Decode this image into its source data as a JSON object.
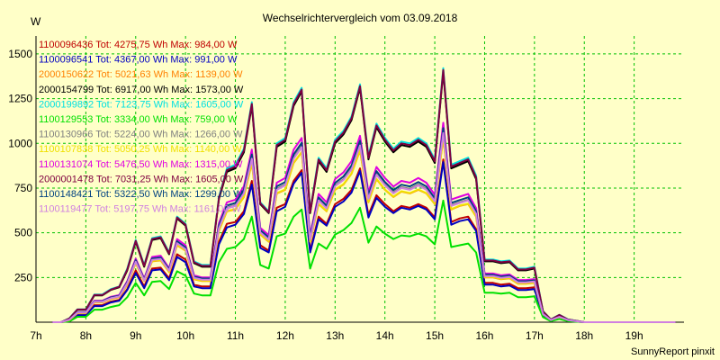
{
  "chart_data": {
    "type": "line",
    "title": "Wechselrichtervergleich vom 03.09.2018",
    "ylabel": "W",
    "footer": "SunnyReport pinxit",
    "ylim": [
      0,
      1600
    ],
    "xlim": [
      7,
      20
    ],
    "grid": true,
    "x_ticks": [
      7,
      8,
      9,
      10,
      11,
      12,
      13,
      14,
      15,
      16,
      17,
      18,
      19
    ],
    "x_tick_labels": [
      "7h",
      "8h",
      "9h",
      "10h",
      "11h",
      "12h",
      "13h",
      "14h",
      "15h",
      "16h",
      "17h",
      "18h",
      "19h"
    ],
    "y_ticks": [
      250,
      500,
      750,
      1000,
      1250,
      1500
    ],
    "y_tick_labels": [
      "250",
      "500",
      "750",
      "1000",
      "1250",
      "1500"
    ],
    "x": [
      7.33,
      7.5,
      7.67,
      7.83,
      8.0,
      8.17,
      8.33,
      8.5,
      8.67,
      8.83,
      9.0,
      9.17,
      9.33,
      9.5,
      9.67,
      9.83,
      10.0,
      10.17,
      10.33,
      10.5,
      10.67,
      10.83,
      11.0,
      11.17,
      11.33,
      11.5,
      11.67,
      11.83,
      12.0,
      12.17,
      12.33,
      12.5,
      12.67,
      12.83,
      13.0,
      13.17,
      13.33,
      13.5,
      13.67,
      13.83,
      14.0,
      14.17,
      14.33,
      14.5,
      14.67,
      14.83,
      15.0,
      15.17,
      15.33,
      15.5,
      15.67,
      15.83,
      16.0,
      16.17,
      16.33,
      16.5,
      16.67,
      16.83,
      17.0,
      17.17,
      17.33,
      17.5,
      17.67,
      17.83,
      18.0,
      18.17,
      18.33,
      18.5,
      18.67,
      18.83,
      19.0,
      19.17,
      19.33,
      19.5,
      19.67,
      19.83
    ],
    "series": [
      {
        "name": "1100096436 Tot: 4275,75 Wh Max: 984,00 W",
        "color": "#c00000",
        "values": [
          0,
          0,
          8,
          45,
          45,
          95,
          95,
          115,
          125,
          185,
          290,
          200,
          300,
          305,
          245,
          380,
          350,
          210,
          200,
          200,
          450,
          550,
          560,
          620,
          790,
          430,
          400,
          640,
          660,
          790,
          850,
          400,
          590,
          550,
          660,
          690,
          740,
          860,
          600,
          710,
          660,
          620,
          650,
          640,
          660,
          640,
          585,
          910,
          560,
          580,
          590,
          520,
          220,
          220,
          210,
          215,
          190,
          190,
          195,
          40,
          10,
          25,
          10,
          5,
          0,
          0,
          0,
          0,
          0,
          0,
          0,
          0,
          0,
          0,
          0,
          0
        ]
      },
      {
        "name": "1100096541 Tot: 4367,00 Wh Max: 991,00 W",
        "color": "#0000c0",
        "values": [
          0,
          0,
          10,
          40,
          40,
          90,
          90,
          110,
          120,
          180,
          275,
          190,
          290,
          295,
          235,
          365,
          335,
          200,
          190,
          190,
          435,
          530,
          545,
          605,
          770,
          415,
          390,
          620,
          645,
          775,
          835,
          390,
          575,
          540,
          645,
          675,
          725,
          845,
          585,
          695,
          645,
          610,
          640,
          630,
          650,
          630,
          575,
          895,
          545,
          565,
          575,
          510,
          210,
          210,
          200,
          205,
          180,
          180,
          185,
          35,
          8,
          22,
          8,
          4,
          0,
          0,
          0,
          0,
          0,
          0,
          0,
          0,
          0,
          0,
          0,
          0
        ]
      },
      {
        "name": "2000150622 Tot: 5021,63 Wh Max: 1139,00 W",
        "color": "#ff8000",
        "values": [
          0,
          0,
          12,
          50,
          50,
          110,
          110,
          130,
          140,
          210,
          330,
          230,
          340,
          345,
          280,
          430,
          400,
          240,
          230,
          230,
          510,
          620,
          630,
          700,
          890,
          490,
          450,
          720,
          740,
          890,
          950,
          450,
          660,
          620,
          740,
          770,
          830,
          960,
          670,
          800,
          740,
          700,
          730,
          720,
          740,
          720,
          660,
          1030,
          630,
          650,
          660,
          590,
          250,
          250,
          240,
          245,
          215,
          215,
          220,
          45,
          12,
          28,
          12,
          6,
          0,
          0,
          0,
          0,
          0,
          0,
          0,
          0,
          0,
          0,
          0,
          0
        ]
      },
      {
        "name": "2000154799 Tot: 6917,00 Wh Max: 1573,00 W",
        "color": "#000000",
        "values": [
          0,
          0,
          20,
          70,
          70,
          150,
          150,
          180,
          195,
          290,
          450,
          310,
          460,
          470,
          380,
          580,
          540,
          330,
          310,
          310,
          690,
          840,
          860,
          950,
          1210,
          660,
          610,
          980,
          1010,
          1210,
          1290,
          610,
          900,
          840,
          1000,
          1050,
          1130,
          1310,
          910,
          1090,
          1010,
          950,
          990,
          980,
          1010,
          980,
          890,
          1400,
          860,
          880,
          900,
          800,
          340,
          340,
          330,
          335,
          290,
          290,
          300,
          60,
          15,
          40,
          15,
          8,
          0,
          0,
          0,
          0,
          0,
          0,
          0,
          0,
          0,
          0,
          0,
          0
        ]
      },
      {
        "name": "2000199892 Tot: 7123,75 Wh Max: 1605,00 W",
        "color": "#00e0e0",
        "values": [
          0,
          0,
          22,
          72,
          72,
          155,
          155,
          185,
          200,
          300,
          460,
          320,
          470,
          480,
          390,
          590,
          550,
          340,
          320,
          320,
          700,
          860,
          880,
          970,
          1230,
          670,
          620,
          1000,
          1030,
          1230,
          1310,
          620,
          920,
          860,
          1020,
          1070,
          1150,
          1330,
          930,
          1110,
          1030,
          970,
          1010,
          1000,
          1030,
          1000,
          910,
          1420,
          880,
          900,
          920,
          820,
          350,
          350,
          340,
          345,
          300,
          300,
          310,
          62,
          16,
          42,
          16,
          8,
          0,
          0,
          0,
          0,
          0,
          0,
          0,
          0,
          0,
          0,
          0,
          0
        ]
      },
      {
        "name": "1100129553 Tot: 3334,00 Wh Max: 759,00 W",
        "color": "#00e000",
        "values": [
          0,
          0,
          5,
          30,
          30,
          70,
          70,
          85,
          95,
          140,
          220,
          150,
          225,
          230,
          185,
          285,
          260,
          160,
          150,
          150,
          335,
          410,
          420,
          465,
          590,
          320,
          300,
          480,
          495,
          590,
          630,
          300,
          440,
          410,
          490,
          515,
          555,
          640,
          445,
          535,
          495,
          465,
          485,
          480,
          495,
          480,
          435,
          680,
          420,
          430,
          440,
          390,
          165,
          165,
          160,
          165,
          140,
          140,
          145,
          28,
          6,
          18,
          6,
          3,
          0,
          0,
          0,
          0,
          0,
          0,
          0,
          0,
          0,
          0,
          0,
          0
        ]
      },
      {
        "name": "1100130966 Tot: 5224,00 Wh Max: 1266,00 W",
        "color": "#808080",
        "values": [
          0,
          0,
          14,
          55,
          55,
          115,
          115,
          135,
          145,
          220,
          340,
          235,
          350,
          355,
          290,
          445,
          410,
          250,
          240,
          240,
          530,
          640,
          655,
          725,
          920,
          505,
          465,
          745,
          770,
          920,
          985,
          465,
          685,
          640,
          765,
          800,
          860,
          995,
          695,
          830,
          770,
          725,
          755,
          745,
          770,
          745,
          680,
          1065,
          655,
          670,
          685,
          610,
          260,
          260,
          250,
          255,
          225,
          225,
          230,
          46,
          12,
          30,
          12,
          6,
          0,
          0,
          0,
          0,
          0,
          0,
          0,
          0,
          0,
          0,
          0,
          0
        ]
      },
      {
        "name": "1100107838 Tot: 5050,25 Wh Max: 1140,00 W",
        "color": "#f0e000",
        "values": [
          0,
          0,
          12,
          52,
          52,
          112,
          112,
          132,
          142,
          212,
          332,
          232,
          342,
          347,
          282,
          432,
          402,
          242,
          232,
          232,
          512,
          622,
          632,
          702,
          892,
          492,
          452,
          722,
          742,
          892,
          952,
          452,
          662,
          622,
          742,
          772,
          832,
          962,
          672,
          802,
          742,
          702,
          732,
          722,
          742,
          722,
          662,
          1032,
          632,
          652,
          662,
          592,
          252,
          252,
          242,
          247,
          217,
          217,
          222,
          45,
          12,
          28,
          12,
          6,
          0,
          0,
          0,
          0,
          0,
          0,
          0,
          0,
          0,
          0,
          0,
          0
        ]
      },
      {
        "name": "1100131074 Tot: 5476,50 Wh Max: 1315,00 W",
        "color": "#e000e0",
        "values": [
          0,
          0,
          15,
          57,
          57,
          120,
          120,
          142,
          152,
          230,
          355,
          245,
          365,
          372,
          302,
          465,
          430,
          262,
          250,
          250,
          555,
          670,
          685,
          760,
          965,
          528,
          487,
          780,
          806,
          965,
          1030,
          487,
          717,
          670,
          800,
          838,
          900,
          1042,
          727,
          868,
          806,
          758,
          790,
          780,
          806,
          780,
          712,
          1115,
          686,
          702,
          717,
          638,
          272,
          272,
          262,
          267,
          236,
          236,
          241,
          48,
          13,
          31,
          13,
          6,
          0,
          0,
          0,
          0,
          0,
          0,
          0,
          0,
          0,
          0,
          0,
          0
        ]
      },
      {
        "name": "2000001478 Tot: 7031,25 Wh Max: 1605,00 W",
        "color": "#800040",
        "values": [
          0,
          0,
          21,
          71,
          71,
          152,
          152,
          182,
          198,
          295,
          455,
          315,
          465,
          475,
          385,
          585,
          545,
          335,
          315,
          315,
          695,
          850,
          870,
          960,
          1220,
          665,
          615,
          990,
          1020,
          1220,
          1300,
          615,
          910,
          850,
          1010,
          1060,
          1140,
          1320,
          920,
          1100,
          1020,
          960,
          1000,
          990,
          1020,
          990,
          900,
          1410,
          870,
          890,
          910,
          810,
          345,
          345,
          335,
          340,
          295,
          295,
          305,
          61,
          15,
          41,
          15,
          8,
          0,
          0,
          0,
          0,
          0,
          0,
          0,
          0,
          0,
          0,
          0,
          0
        ]
      },
      {
        "name": "1100148421 Tot: 5322,50 Wh Max: 1299,00 W",
        "color": "#004080",
        "values": [
          0,
          0,
          14,
          56,
          56,
          117,
          117,
          138,
          148,
          224,
          346,
          239,
          356,
          362,
          295,
          453,
          418,
          255,
          244,
          244,
          540,
          652,
          667,
          740,
          938,
          514,
          474,
          759,
          784,
          938,
          1003,
          474,
          698,
          652,
          779,
          815,
          876,
          1014,
          708,
          845,
          784,
          738,
          769,
          759,
          784,
          759,
          693,
          1085,
          667,
          683,
          698,
          621,
          265,
          265,
          255,
          260,
          229,
          229,
          234,
          47,
          12,
          30,
          12,
          6,
          0,
          0,
          0,
          0,
          0,
          0,
          0,
          0,
          0,
          0,
          0,
          0
        ]
      },
      {
        "name": "1100119477 Tot: 5197,75 Wh Max: 1161,00 W",
        "color": "#d080e0",
        "values": [
          0,
          0,
          14,
          54,
          54,
          114,
          114,
          134,
          144,
          218,
          338,
          234,
          348,
          353,
          288,
          442,
          408,
          248,
          238,
          238,
          526,
          636,
          650,
          720,
          914,
          502,
          462,
          740,
          765,
          914,
          978,
          462,
          680,
          636,
          760,
          795,
          854,
          988,
          690,
          824,
          765,
          720,
          750,
          740,
          765,
          740,
          676,
          1058,
          650,
          666,
          680,
          606,
          258,
          258,
          248,
          253,
          223,
          223,
          228,
          46,
          12,
          30,
          12,
          6,
          0,
          0,
          0,
          0,
          0,
          0,
          0,
          0,
          0,
          0,
          0,
          0
        ]
      }
    ]
  }
}
